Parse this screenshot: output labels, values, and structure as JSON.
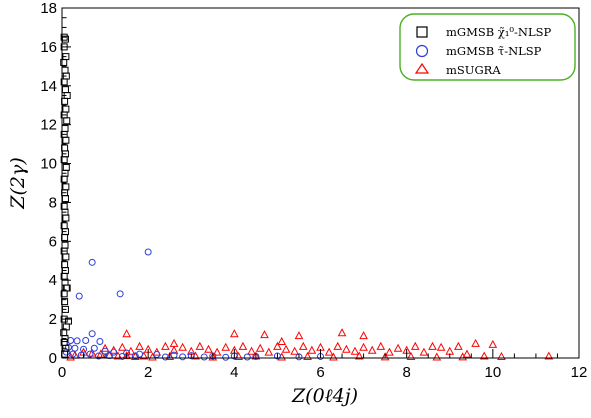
{
  "chart_data": {
    "type": "scatter",
    "xlabel": "Z(0ℓ4j)",
    "ylabel": "Z(2γ)",
    "xlim": [
      0,
      12
    ],
    "ylim": [
      0,
      18
    ],
    "x_ticks": [
      "0",
      "2",
      "4",
      "6",
      "8",
      "10",
      "12"
    ],
    "y_ticks": [
      "0",
      "2",
      "4",
      "6",
      "8",
      "10",
      "12",
      "14",
      "16",
      "18"
    ],
    "grid": false,
    "legend_position": "top-right",
    "series": [
      {
        "name": "mGMSB χ̃₁⁰-NLSP",
        "marker": "square",
        "color": "#000000",
        "points": [
          [
            0.05,
            16.5
          ],
          [
            0.08,
            16.4
          ],
          [
            0.05,
            16.0
          ],
          [
            0.09,
            15.5
          ],
          [
            0.04,
            15.2
          ],
          [
            0.07,
            14.8
          ],
          [
            0.1,
            14.5
          ],
          [
            0.05,
            14.2
          ],
          [
            0.08,
            13.8
          ],
          [
            0.12,
            13.5
          ],
          [
            0.06,
            13.2
          ],
          [
            0.09,
            12.8
          ],
          [
            0.05,
            12.5
          ],
          [
            0.11,
            12.2
          ],
          [
            0.07,
            11.8
          ],
          [
            0.05,
            11.5
          ],
          [
            0.09,
            11.2
          ],
          [
            0.06,
            10.8
          ],
          [
            0.08,
            10.5
          ],
          [
            0.05,
            10.2
          ],
          [
            0.1,
            9.8
          ],
          [
            0.07,
            9.5
          ],
          [
            0.05,
            9.2
          ],
          [
            0.09,
            8.8
          ],
          [
            0.06,
            8.5
          ],
          [
            0.08,
            8.2
          ],
          [
            0.05,
            7.8
          ],
          [
            0.07,
            7.5
          ],
          [
            0.09,
            7.2
          ],
          [
            0.05,
            6.8
          ],
          [
            0.08,
            6.5
          ],
          [
            0.06,
            6.2
          ],
          [
            0.07,
            5.8
          ],
          [
            0.05,
            5.5
          ],
          [
            0.09,
            5.2
          ],
          [
            0.06,
            4.8
          ],
          [
            0.08,
            4.5
          ],
          [
            0.05,
            4.2
          ],
          [
            0.07,
            3.9
          ],
          [
            0.1,
            3.6
          ],
          [
            0.05,
            3.3
          ],
          [
            0.12,
            3.6
          ],
          [
            0.06,
            2.9
          ],
          [
            0.08,
            2.5
          ],
          [
            0.05,
            2.0
          ],
          [
            0.15,
            1.9
          ],
          [
            0.1,
            1.6
          ],
          [
            0.04,
            1.3
          ],
          [
            0.07,
            1.0
          ],
          [
            0.05,
            0.8
          ],
          [
            0.09,
            0.5
          ],
          [
            0.06,
            0.2
          ]
        ]
      },
      {
        "name": "mGMSB τ̃-NLSP",
        "marker": "circle",
        "color": "#2c3ed8",
        "points": [
          [
            2.0,
            5.45
          ],
          [
            0.7,
            4.92
          ],
          [
            1.35,
            3.3
          ],
          [
            0.4,
            3.18
          ],
          [
            0.7,
            1.25
          ],
          [
            0.2,
            0.9
          ],
          [
            0.35,
            0.88
          ],
          [
            0.55,
            0.9
          ],
          [
            0.88,
            0.85
          ],
          [
            0.15,
            0.55
          ],
          [
            0.3,
            0.5
          ],
          [
            0.5,
            0.45
          ],
          [
            0.75,
            0.5
          ],
          [
            1.0,
            0.35
          ],
          [
            1.2,
            0.3
          ],
          [
            1.5,
            0.25
          ],
          [
            1.8,
            0.2
          ],
          [
            2.2,
            0.18
          ],
          [
            2.6,
            0.15
          ],
          [
            3.0,
            0.12
          ],
          [
            3.5,
            0.1
          ],
          [
            4.0,
            0.1
          ],
          [
            4.5,
            0.08
          ],
          [
            5.0,
            0.1
          ],
          [
            5.5,
            0.06
          ],
          [
            6.0,
            0.08
          ],
          [
            0.1,
            0.3
          ],
          [
            0.25,
            0.2
          ],
          [
            0.45,
            0.15
          ],
          [
            0.65,
            0.2
          ],
          [
            0.85,
            0.1
          ],
          [
            1.1,
            0.12
          ],
          [
            1.4,
            0.08
          ],
          [
            1.7,
            0.1
          ],
          [
            2.4,
            0.05
          ],
          [
            2.8,
            0.06
          ],
          [
            3.3,
            0.05
          ],
          [
            3.8,
            0.04
          ],
          [
            4.3,
            0.05
          ]
        ]
      },
      {
        "name": "mSUGRA",
        "marker": "triangle",
        "color": "#ff0000",
        "points": [
          [
            1.5,
            1.25
          ],
          [
            4.0,
            1.25
          ],
          [
            4.7,
            1.2
          ],
          [
            5.5,
            1.15
          ],
          [
            6.5,
            1.3
          ],
          [
            7.0,
            1.15
          ],
          [
            2.6,
            0.75
          ],
          [
            5.1,
            0.85
          ],
          [
            9.6,
            0.75
          ],
          [
            10.0,
            0.7
          ],
          [
            11.3,
            0.1
          ],
          [
            8.6,
            0.6
          ],
          [
            1.0,
            0.5
          ],
          [
            1.2,
            0.4
          ],
          [
            1.4,
            0.55
          ],
          [
            1.6,
            0.35
          ],
          [
            1.8,
            0.6
          ],
          [
            2.0,
            0.45
          ],
          [
            2.2,
            0.3
          ],
          [
            2.4,
            0.6
          ],
          [
            2.6,
            0.4
          ],
          [
            2.8,
            0.55
          ],
          [
            3.0,
            0.35
          ],
          [
            3.2,
            0.6
          ],
          [
            3.4,
            0.45
          ],
          [
            3.6,
            0.3
          ],
          [
            3.8,
            0.55
          ],
          [
            4.0,
            0.4
          ],
          [
            4.2,
            0.6
          ],
          [
            4.4,
            0.35
          ],
          [
            4.6,
            0.5
          ],
          [
            4.8,
            0.3
          ],
          [
            5.0,
            0.6
          ],
          [
            5.2,
            0.45
          ],
          [
            5.4,
            0.35
          ],
          [
            5.6,
            0.6
          ],
          [
            5.8,
            0.4
          ],
          [
            6.0,
            0.55
          ],
          [
            6.2,
            0.3
          ],
          [
            6.4,
            0.6
          ],
          [
            6.6,
            0.45
          ],
          [
            6.8,
            0.35
          ],
          [
            7.0,
            0.55
          ],
          [
            7.2,
            0.4
          ],
          [
            7.4,
            0.6
          ],
          [
            7.6,
            0.3
          ],
          [
            7.8,
            0.5
          ],
          [
            8.0,
            0.4
          ],
          [
            8.2,
            0.6
          ],
          [
            8.4,
            0.3
          ],
          [
            8.8,
            0.55
          ],
          [
            9.0,
            0.35
          ],
          [
            9.2,
            0.6
          ],
          [
            9.4,
            0.2
          ],
          [
            9.8,
            0.1
          ],
          [
            10.2,
            0.08
          ],
          [
            0.5,
            0.3
          ],
          [
            0.7,
            0.25
          ],
          [
            0.9,
            0.2
          ],
          [
            1.1,
            0.15
          ],
          [
            1.3,
            0.1
          ],
          [
            1.5,
            0.12
          ],
          [
            1.7,
            0.08
          ],
          [
            1.9,
            0.1
          ],
          [
            2.1,
            0.05
          ],
          [
            2.5,
            0.08
          ],
          [
            3.1,
            0.1
          ],
          [
            3.5,
            0.05
          ],
          [
            4.1,
            0.08
          ],
          [
            4.5,
            0.1
          ],
          [
            5.1,
            0.05
          ],
          [
            5.7,
            0.08
          ],
          [
            6.3,
            0.05
          ],
          [
            6.9,
            0.1
          ],
          [
            7.5,
            0.06
          ],
          [
            8.1,
            0.08
          ],
          [
            8.7,
            0.05
          ],
          [
            9.3,
            0.06
          ],
          [
            0.3,
            0.15
          ],
          [
            0.2,
            0.05
          ]
        ]
      }
    ]
  }
}
